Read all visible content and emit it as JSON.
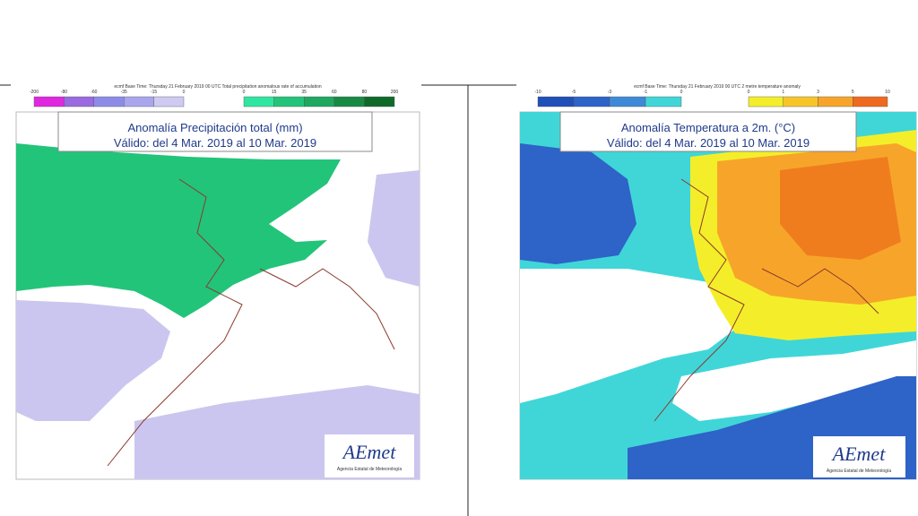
{
  "panels": [
    {
      "header": "ecmf  Base Time: Thursday 21 February 2019 00 UTC Total precipitation anomalous rate of accumulation",
      "legend_neg": [
        "-200",
        "-80",
        "-60",
        "-35",
        "-15",
        "0"
      ],
      "legend_pos": [
        "0",
        "15",
        "35",
        "60",
        "80",
        "200"
      ],
      "title": "Anomalía Precipitación total (mm)",
      "subtitle": "Válido: del 4 Mar. 2019 al 10 Mar. 2019",
      "logo": "AEmet",
      "agency": "Agencia Estatal de Meteorología"
    },
    {
      "header": "ecmf  Base Time: Thursday 21 February 2019 00 UTC 2 metre temperature anomaly",
      "legend_neg": [
        "-10",
        "-5",
        "-3",
        "-1",
        "0"
      ],
      "legend_pos": [
        "0",
        "1",
        "3",
        "5",
        "10"
      ],
      "title": "Anomalía Temperatura a 2m. (°C)",
      "subtitle": "Válido: del 4 Mar. 2019 al 10 Mar. 2019",
      "logo": "AEmet",
      "agency": "Agencia Estatal de Meteorología"
    }
  ]
}
